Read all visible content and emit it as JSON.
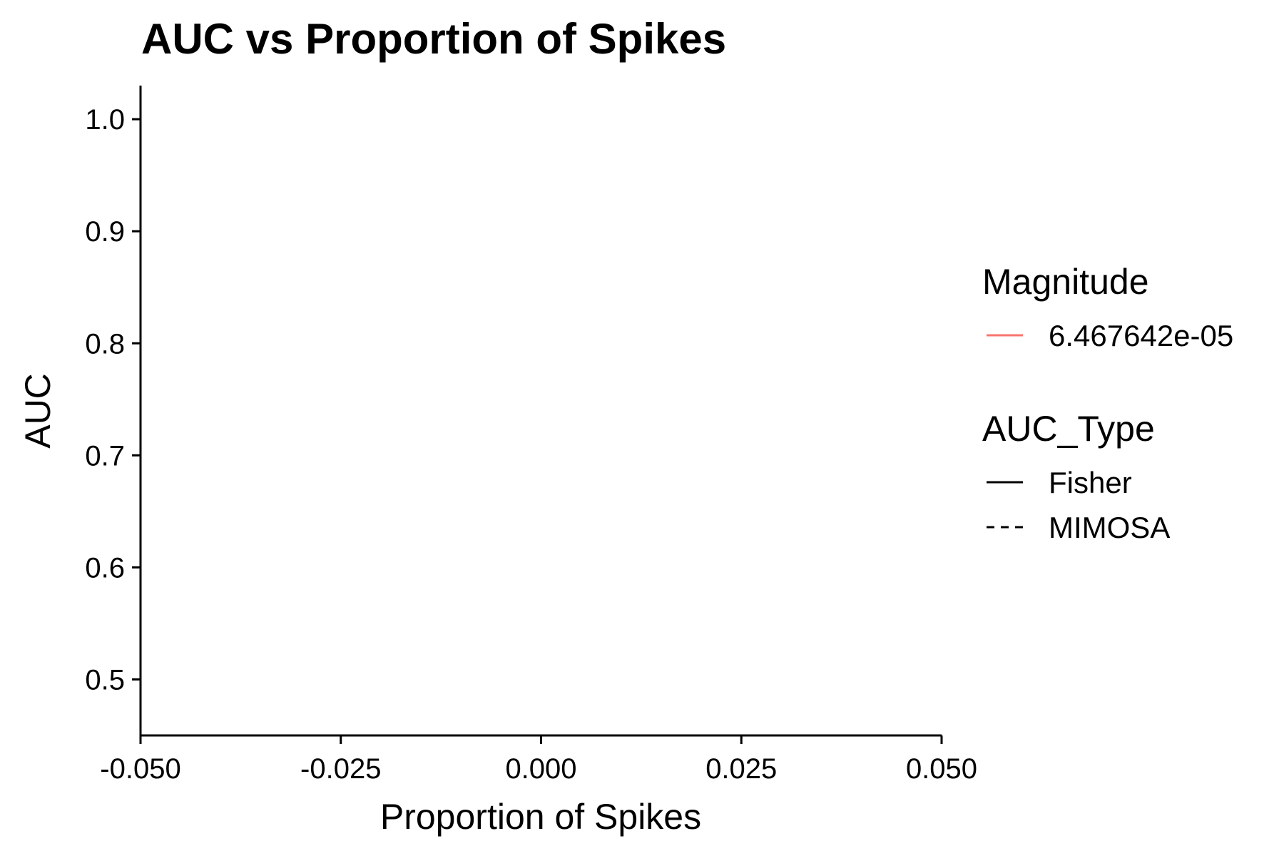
{
  "chart_data": {
    "type": "line",
    "title": "AUC vs Proportion of Spikes",
    "xlabel": "Proportion of Spikes",
    "ylabel": "AUC",
    "xlim": [
      -0.05,
      0.05
    ],
    "ylim": [
      0.45,
      1.03
    ],
    "x_ticks": [
      "-0.050",
      "-0.025",
      "0.000",
      "0.025",
      "0.050"
    ],
    "y_ticks": [
      "0.5",
      "0.6",
      "0.7",
      "0.8",
      "0.9",
      "1.0"
    ],
    "grid": false,
    "legend_position": "right",
    "series": [],
    "legends": [
      {
        "title": "Magnitude",
        "items": [
          {
            "label": "6.467642e-05",
            "color": "#F8766D",
            "linetype": "solid"
          }
        ]
      },
      {
        "title": "AUC_Type",
        "items": [
          {
            "label": "Fisher",
            "color": "#000000",
            "linetype": "solid"
          },
          {
            "label": "MIMOSA",
            "color": "#000000",
            "linetype": "dashed"
          }
        ]
      }
    ]
  }
}
